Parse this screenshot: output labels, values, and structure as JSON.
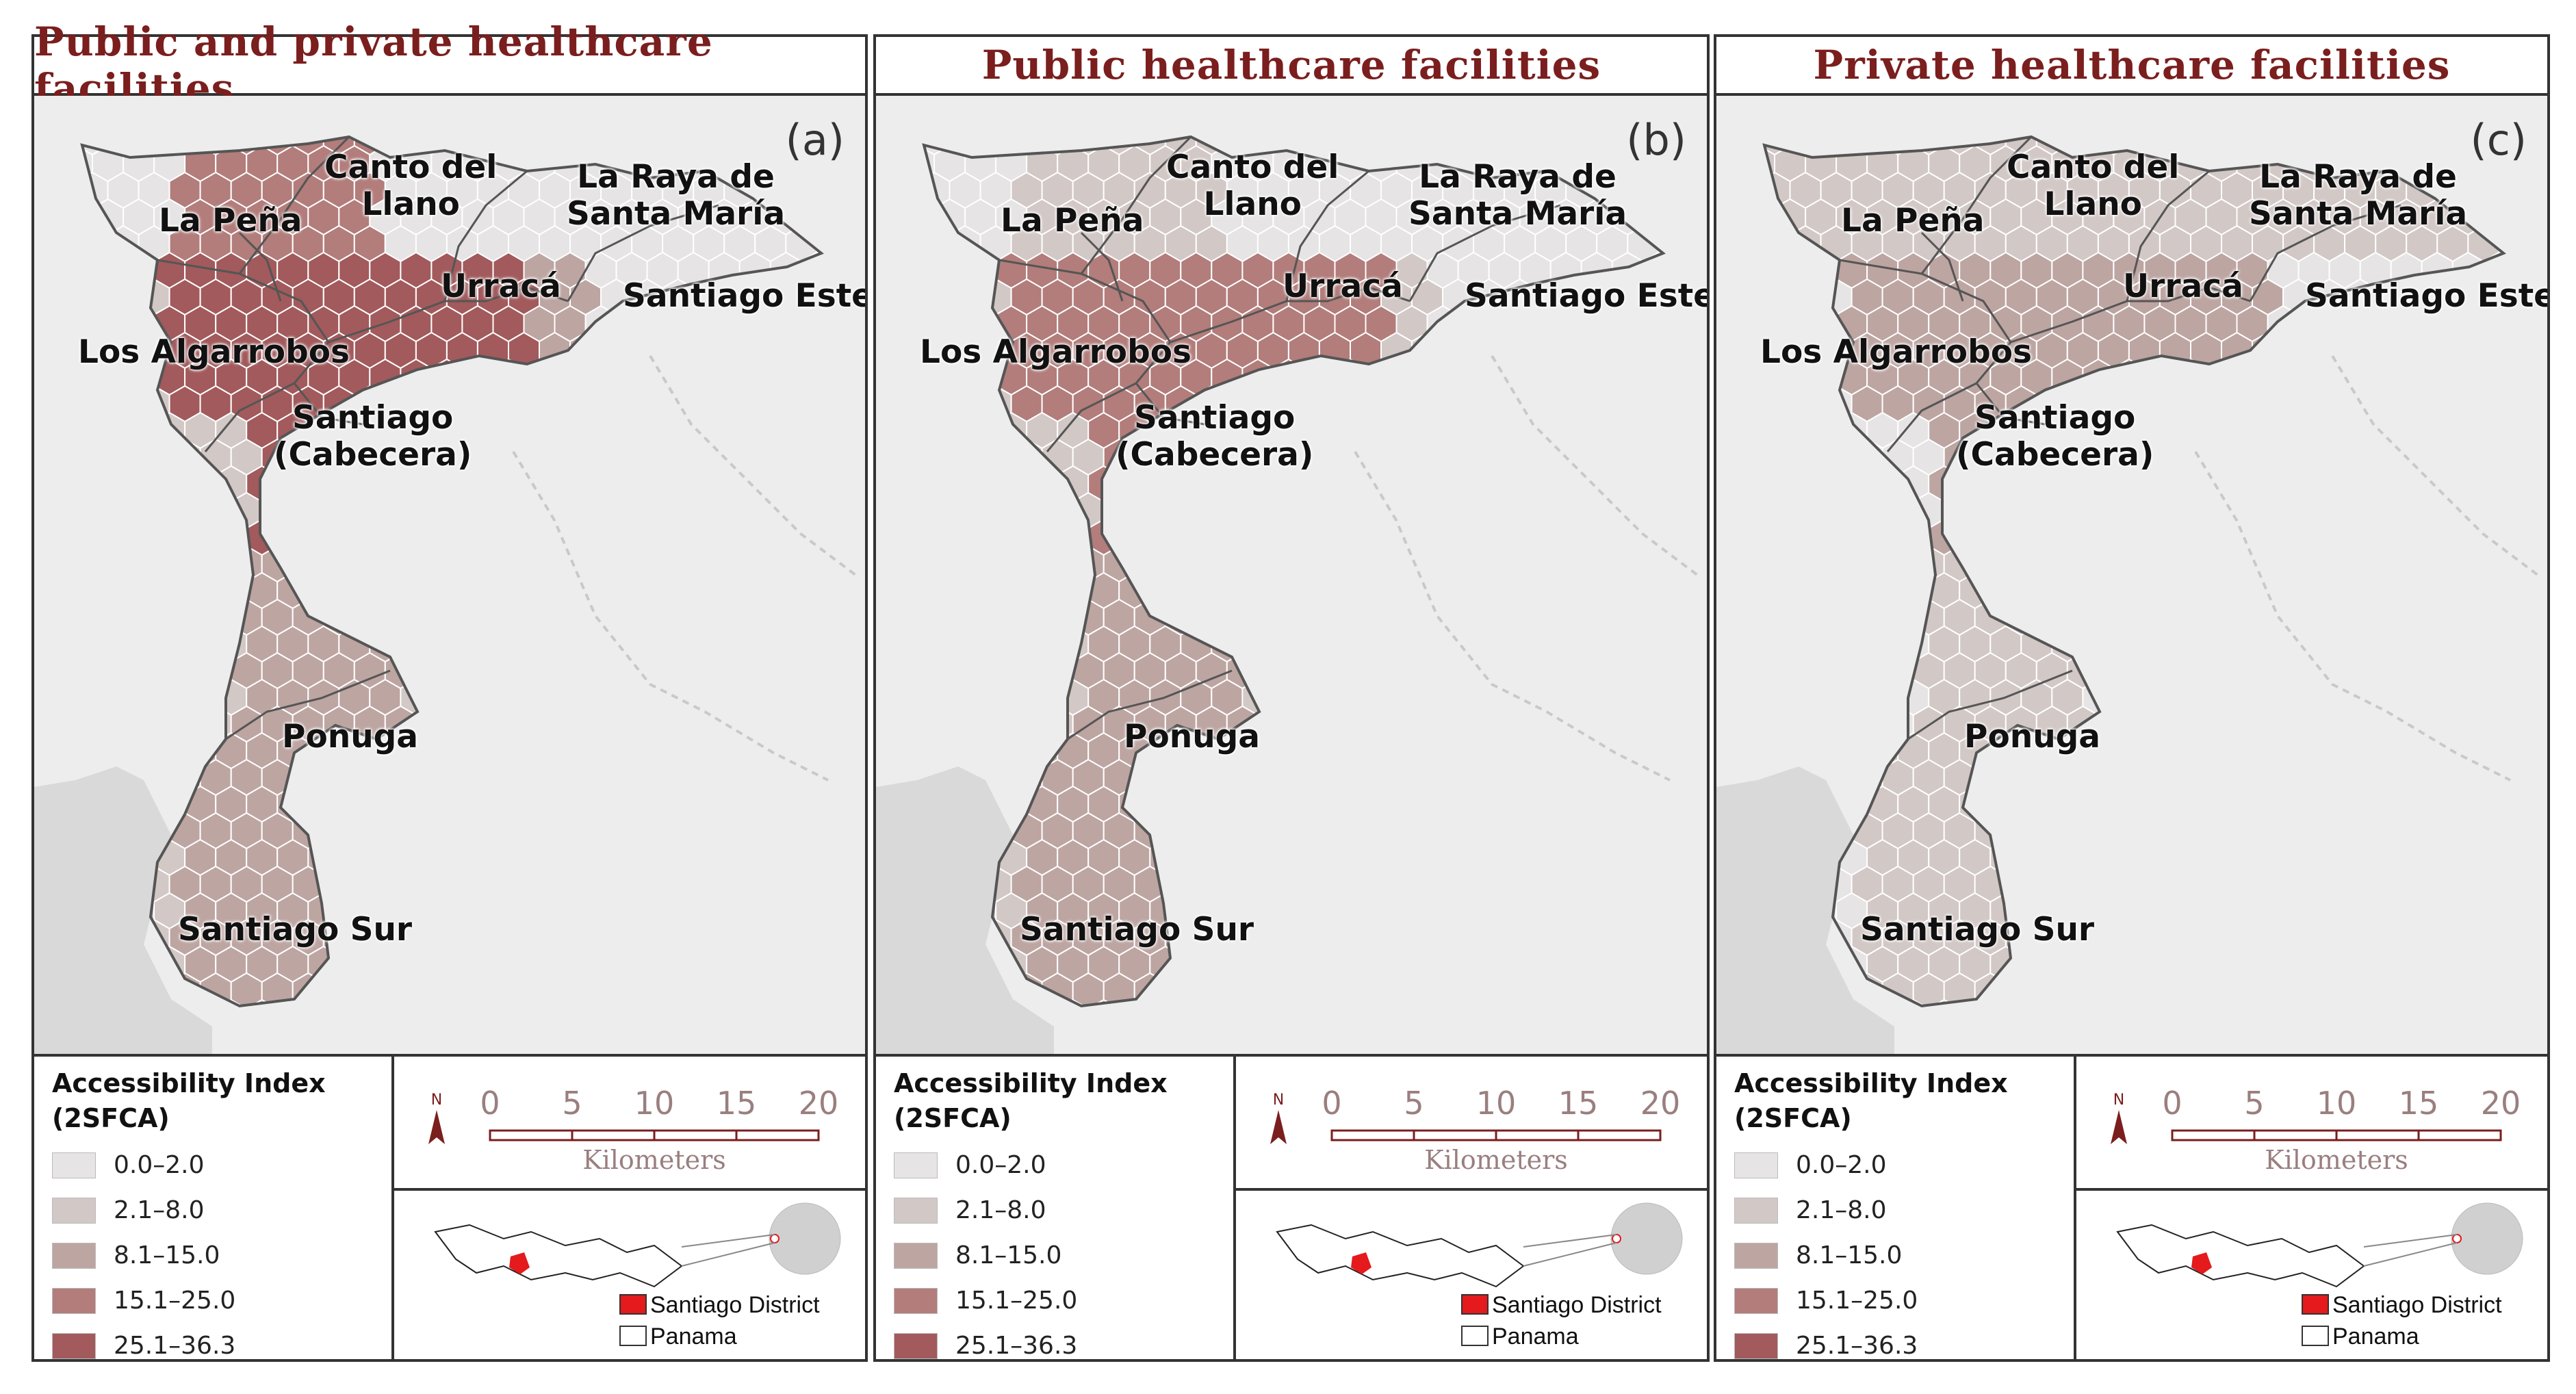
{
  "panels": [
    {
      "title": "Public and private healthcare facilities",
      "letter": "(a)",
      "scheme": "combined"
    },
    {
      "title": "Public healthcare facilities",
      "letter": "(b)",
      "scheme": "public"
    },
    {
      "title": "Private healthcare facilities",
      "letter": "(c)",
      "scheme": "private"
    }
  ],
  "places": {
    "canto_del_llano": "Canto del\nLlano",
    "la_raya": "La Raya de\nSanta María",
    "la_pena": "La Peña",
    "urraca": "Urracá",
    "santiago_este": "Santiago Este",
    "los_algarrobos": "Los Algarrobos",
    "santiago_cabecera": "Santiago\n(Cabecera)",
    "ponuga": "Ponuga",
    "santiago_sur": "Santiago Sur"
  },
  "legend": {
    "title_line1": "Accessibility Index",
    "title_line2": "(2SFCA)",
    "classes": [
      {
        "label": "0.0–2.0",
        "color": "#e6e4e4"
      },
      {
        "label": "2.1–8.0",
        "color": "#d2c8c6"
      },
      {
        "label": "8.1–15.0",
        "color": "#bda5a2"
      },
      {
        "label": "15.1–25.0",
        "color": "#b27d7b"
      },
      {
        "label": "25.1–36.3",
        "color": "#a25a5c"
      }
    ]
  },
  "scale": {
    "ticks": [
      "0",
      "5",
      "10",
      "15",
      "20"
    ],
    "unit": "Kilometers",
    "north": "N"
  },
  "inset": {
    "district_label": "Santiago District",
    "country_label": "Panama",
    "district_color": "#e41a1c"
  }
}
